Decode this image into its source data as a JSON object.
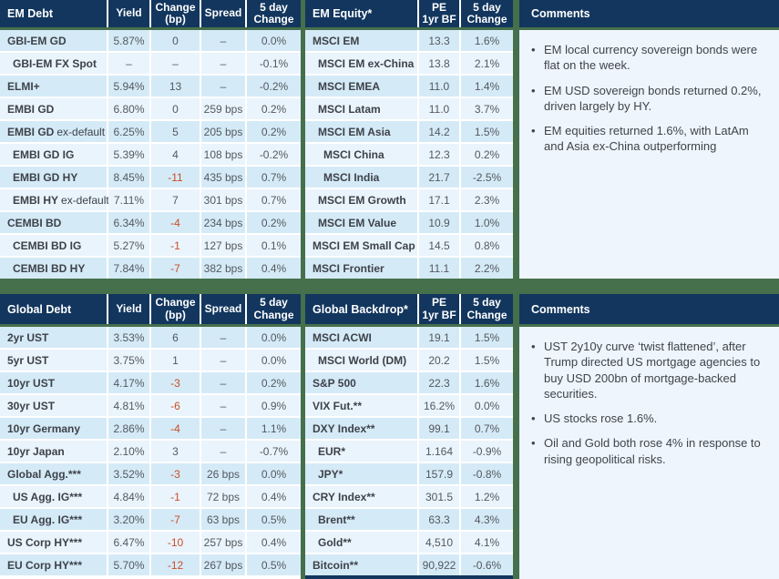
{
  "colors": {
    "background_green": "#45704B",
    "header_navy": "#12365E",
    "row_odd": "#D5EAF7",
    "row_even": "#EAF4FC",
    "comments_body": "#EEF5FD",
    "negative_red": "#C94E27",
    "label_text": "#3D4249",
    "value_text": "#53585E"
  },
  "tables": {
    "em_debt": {
      "title": "EM Debt",
      "columns": [
        "Yield",
        "Change\n(bp)",
        "Spread",
        "5 day\nChange"
      ],
      "rows": [
        {
          "label": "GBI-EM GD",
          "indent": 0,
          "values": [
            "5.87%",
            "0",
            "–",
            "0.0%"
          ]
        },
        {
          "label": "GBI-EM FX Spot",
          "indent": 1,
          "values": [
            "–",
            "–",
            "–",
            "-0.1%"
          ]
        },
        {
          "label": "ELMI+",
          "indent": 0,
          "values": [
            "5.94%",
            "13",
            "–",
            "-0.2%"
          ]
        },
        {
          "label": "EMBI GD",
          "indent": 0,
          "values": [
            "6.80%",
            "0",
            "259 bps",
            "0.2%"
          ]
        },
        {
          "label": "EMBI GD",
          "suffix": "ex-default",
          "indent": 0,
          "values": [
            "6.25%",
            "5",
            "205 bps",
            "0.2%"
          ]
        },
        {
          "label": "EMBI GD IG",
          "indent": 1,
          "values": [
            "5.39%",
            "4",
            "108 bps",
            "-0.2%"
          ]
        },
        {
          "label": "EMBI GD HY",
          "indent": 1,
          "values": [
            "8.45%",
            "-11",
            "435 bps",
            "0.7%"
          ]
        },
        {
          "label": "EMBI HY",
          "suffix": "ex-default",
          "indent": 1,
          "values": [
            "7.11%",
            "7",
            "301 bps",
            "0.7%"
          ]
        },
        {
          "label": "CEMBI BD",
          "indent": 0,
          "values": [
            "6.34%",
            "-4",
            "234 bps",
            "0.2%"
          ]
        },
        {
          "label": "CEMBI BD IG",
          "indent": 1,
          "values": [
            "5.27%",
            "-1",
            "127 bps",
            "0.1%"
          ]
        },
        {
          "label": "CEMBI BD HY",
          "indent": 1,
          "values": [
            "7.84%",
            "-7",
            "382 bps",
            "0.4%"
          ]
        }
      ]
    },
    "em_equity": {
      "title": "EM Equity*",
      "columns": [
        "PE\n1yr BF",
        "5 day\nChange"
      ],
      "rows": [
        {
          "label": "MSCI EM",
          "indent": 0,
          "values": [
            "13.3",
            "1.6%"
          ]
        },
        {
          "label": "MSCI EM ex-China",
          "indent": 1,
          "values": [
            "13.8",
            "2.1%"
          ]
        },
        {
          "label": "MSCI EMEA",
          "indent": 1,
          "values": [
            "11.0",
            "1.4%"
          ]
        },
        {
          "label": "MSCI Latam",
          "indent": 1,
          "values": [
            "11.0",
            "3.7%"
          ]
        },
        {
          "label": "MSCI EM Asia",
          "indent": 1,
          "values": [
            "14.2",
            "1.5%"
          ]
        },
        {
          "label": "MSCI China",
          "indent": 2,
          "values": [
            "12.3",
            "0.2%"
          ]
        },
        {
          "label": "MSCI India",
          "indent": 2,
          "values": [
            "21.7",
            "-2.5%"
          ]
        },
        {
          "label": "MSCI EM Growth",
          "indent": 1,
          "values": [
            "17.1",
            "2.3%"
          ]
        },
        {
          "label": "MSCI EM Value",
          "indent": 1,
          "values": [
            "10.9",
            "1.0%"
          ]
        },
        {
          "label": "MSCI EM Small Cap",
          "indent": 0,
          "values": [
            "14.5",
            "0.8%"
          ]
        },
        {
          "label": "MSCI Frontier",
          "indent": 0,
          "values": [
            "11.1",
            "2.2%"
          ]
        }
      ]
    },
    "global_debt": {
      "title": "Global Debt",
      "columns": [
        "Yield",
        "Change\n(bp)",
        "Spread",
        "5 day\nChange"
      ],
      "rows": [
        {
          "label": "2yr UST",
          "indent": 0,
          "values": [
            "3.53%",
            "6",
            "–",
            "0.0%"
          ]
        },
        {
          "label": "5yr UST",
          "indent": 0,
          "values": [
            "3.75%",
            "1",
            "–",
            "0.0%"
          ]
        },
        {
          "label": "10yr UST",
          "indent": 0,
          "values": [
            "4.17%",
            "-3",
            "–",
            "0.2%"
          ]
        },
        {
          "label": "30yr UST",
          "indent": 0,
          "values": [
            "4.81%",
            "-6",
            "–",
            "0.9%"
          ]
        },
        {
          "label": "10yr Germany",
          "indent": 0,
          "values": [
            "2.86%",
            "-4",
            "–",
            "1.1%"
          ]
        },
        {
          "label": "10yr Japan",
          "indent": 0,
          "values": [
            "2.10%",
            "3",
            "–",
            "-0.7%"
          ]
        },
        {
          "label": "Global Agg.***",
          "indent": 0,
          "values": [
            "3.52%",
            "-3",
            "26 bps",
            "0.0%"
          ]
        },
        {
          "label": "US Agg. IG***",
          "indent": 1,
          "values": [
            "4.84%",
            "-1",
            "72 bps",
            "0.4%"
          ]
        },
        {
          "label": "EU Agg. IG***",
          "indent": 1,
          "values": [
            "3.20%",
            "-7",
            "63 bps",
            "0.5%"
          ]
        },
        {
          "label": "US Corp HY***",
          "indent": 0,
          "values": [
            "6.47%",
            "-10",
            "257 bps",
            "0.4%"
          ]
        },
        {
          "label": "EU Corp HY***",
          "indent": 0,
          "values": [
            "5.70%",
            "-12",
            "267 bps",
            "0.5%"
          ]
        }
      ]
    },
    "global_backdrop": {
      "title": "Global Backdrop*",
      "columns": [
        "PE\n1yr BF",
        "5 day\nChange"
      ],
      "rows": [
        {
          "label": "MSCI ACWI",
          "indent": 0,
          "values": [
            "19.1",
            "1.5%"
          ]
        },
        {
          "label": "MSCI World (DM)",
          "indent": 1,
          "values": [
            "20.2",
            "1.5%"
          ]
        },
        {
          "label": "S&P 500",
          "indent": 0,
          "values": [
            "22.3",
            "1.6%"
          ]
        },
        {
          "label": "VIX Fut.**",
          "indent": 0,
          "values": [
            "16.2%",
            "0.0%"
          ]
        },
        {
          "label": "DXY Index**",
          "indent": 0,
          "values": [
            "99.1",
            "0.7%"
          ]
        },
        {
          "label": "EUR*",
          "indent": 1,
          "values": [
            "1.164",
            "-0.9%"
          ]
        },
        {
          "label": "JPY*",
          "indent": 1,
          "values": [
            "157.9",
            "-0.8%"
          ]
        },
        {
          "label": "CRY Index**",
          "indent": 0,
          "values": [
            "301.5",
            "1.2%"
          ]
        },
        {
          "label": "Brent**",
          "indent": 1,
          "values": [
            "63.3",
            "4.3%"
          ]
        },
        {
          "label": "Gold**",
          "indent": 1,
          "values": [
            "4,510",
            "4.1%"
          ]
        },
        {
          "label": "Bitcoin**",
          "indent": 0,
          "values": [
            "90,922",
            "-0.6%"
          ]
        }
      ]
    }
  },
  "comments_top": {
    "title": "Comments",
    "bullets": [
      "EM local currency sovereign bonds were flat on the week.",
      "EM USD sovereign bonds returned 0.2%, driven largely by HY.",
      "EM equities returned 1.6%, with LatAm and Asia ex-China outperforming"
    ]
  },
  "comments_bottom": {
    "title": "Comments",
    "bullets": [
      "UST 2y10y curve ‘twist flattened’, after Trump directed US mortgage agencies to buy USD 200bn of mortgage-backed securities.",
      "US stocks rose 1.6%.",
      "Oil and Gold both rose 4% in response to rising geopolitical risks."
    ]
  }
}
